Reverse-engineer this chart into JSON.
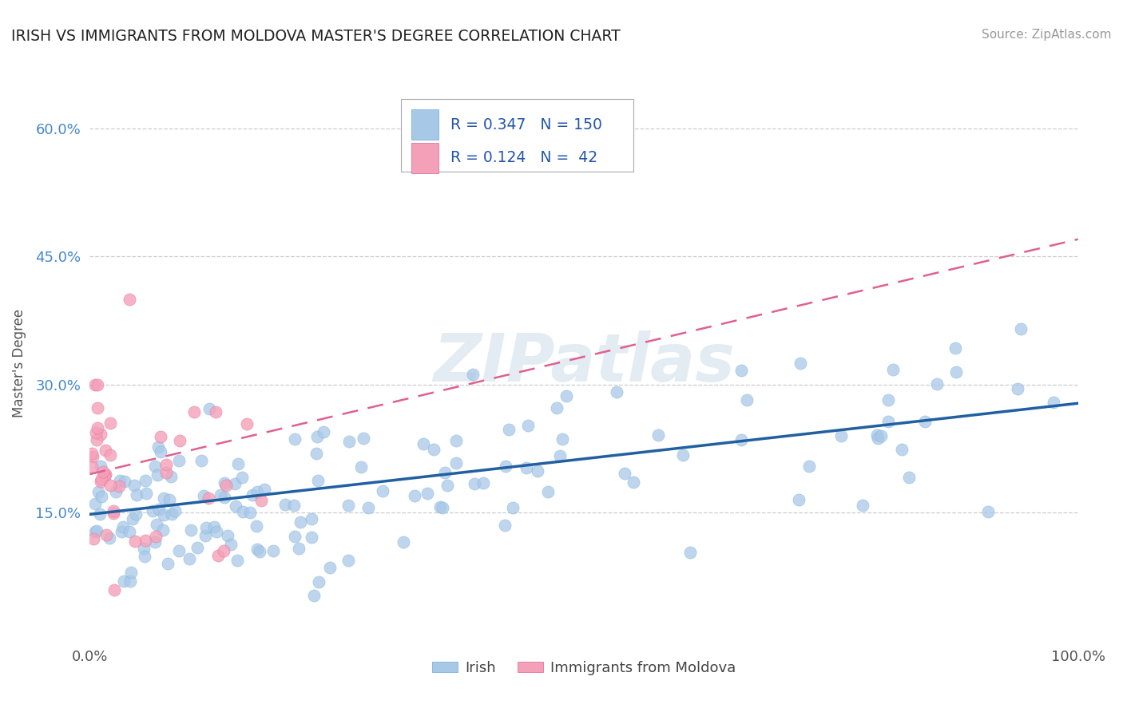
{
  "title": "IRISH VS IMMIGRANTS FROM MOLDOVA MASTER'S DEGREE CORRELATION CHART",
  "source_text": "Source: ZipAtlas.com",
  "ylabel": "Master's Degree",
  "xlim": [
    0.0,
    1.0
  ],
  "ylim": [
    0.0,
    0.65
  ],
  "xtick_positions": [
    0.0,
    1.0
  ],
  "xtick_labels": [
    "0.0%",
    "100.0%"
  ],
  "ytick_positions": [
    0.15,
    0.3,
    0.45,
    0.6
  ],
  "ytick_labels": [
    "15.0%",
    "30.0%",
    "45.0%",
    "60.0%"
  ],
  "blue_color": "#a8c8e8",
  "blue_edge_color": "#6aaad4",
  "pink_color": "#f4a0b8",
  "pink_edge_color": "#e06090",
  "blue_line_color": "#2060a0",
  "pink_line_color": "#e06090",
  "legend_R_blue": "0.347",
  "legend_N_blue": "150",
  "legend_R_pink": "0.124",
  "legend_N_pink": "42",
  "watermark": "ZIPatlas",
  "blue_line_x0": 0.0,
  "blue_line_y0": 0.148,
  "blue_line_x1": 1.0,
  "blue_line_y1": 0.278,
  "pink_line_x0": 0.0,
  "pink_line_y0": 0.195,
  "pink_line_x1": 1.0,
  "pink_line_y1": 0.47
}
